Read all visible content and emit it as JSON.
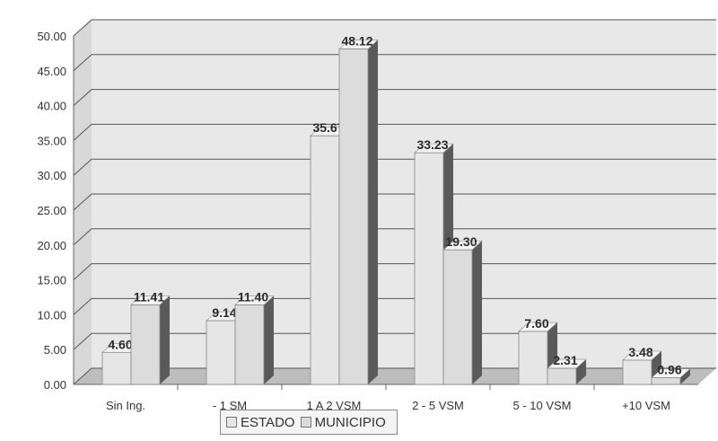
{
  "chart_data": {
    "type": "bar",
    "categories": [
      "Sin Ing.",
      "- 1 SM",
      "1 A 2 VSM",
      "2 - 5 VSM",
      "5 - 10 VSM",
      "+10 VSM"
    ],
    "series": [
      {
        "name": "ESTADO",
        "values": [
          4.6,
          9.14,
          35.67,
          33.23,
          7.6,
          3.48
        ],
        "labels": [
          "4.60",
          "9.14",
          "35.67",
          "33.23",
          "7.60",
          "3.48"
        ]
      },
      {
        "name": "MUNICIPIO",
        "values": [
          11.41,
          11.4,
          48.12,
          19.3,
          2.31,
          0.96
        ],
        "labels": [
          "11.41",
          "11.40",
          "48.12",
          "19.30",
          "2.31",
          "0.96"
        ]
      }
    ],
    "yticks": [
      "0.00",
      "5.00",
      "10.00",
      "15.00",
      "20.00",
      "25.00",
      "30.00",
      "35.00",
      "40.00",
      "45.00",
      "50.00"
    ],
    "ylim": [
      0,
      50
    ],
    "grid": true,
    "legend_position": "bottom",
    "title": "",
    "xlabel": "",
    "ylabel": ""
  },
  "colors": {
    "estado_face": "#e6e6e6",
    "municipio_face": "#dcdcdc",
    "side": "#5a5a5a",
    "top": "#f4f4f4",
    "wall": "#e8e8e8",
    "floor": "#bdbdbd",
    "grid": "#555555"
  }
}
